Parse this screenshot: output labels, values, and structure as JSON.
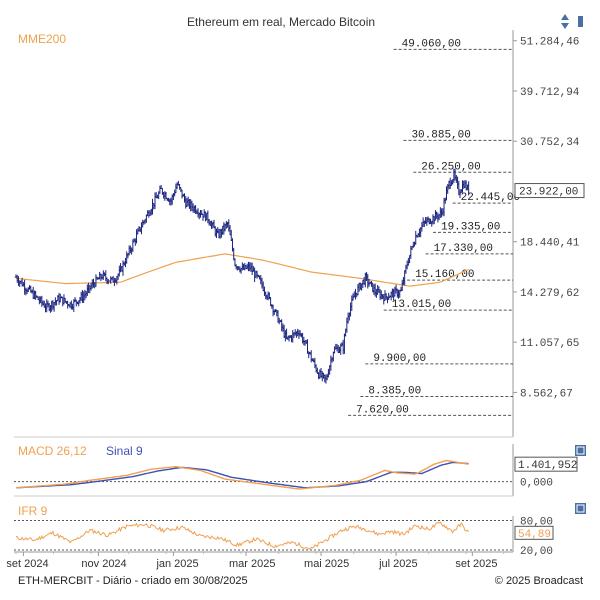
{
  "header": {
    "title": "Ethereum em real, Mercado Bitcoin",
    "sort_icon": "up-down-arrows-icon"
  },
  "footer": {
    "left": "ETH-MERCBIT - Diário - criado em 30/08/2025",
    "right": "© 2025 Broadcast"
  },
  "colors": {
    "price": "#1a237e",
    "mme": "#f0a050",
    "macd": "#f0a050",
    "signal": "#3f51b5",
    "ifr": "#f0a050",
    "grid": "#555555",
    "icon": "#4a6fa5"
  },
  "chart_data": [
    {
      "type": "ohlc",
      "title": "Ethereum em real, Mercado Bitcoin",
      "indicator_label": "MME200",
      "y_scale": "log",
      "ylim": [
        7000,
        52000
      ],
      "y_ticks": [
        "51.284,46",
        "39.712,94",
        "30.752,34",
        "23.922,00",
        "18.440,41",
        "14.279,62",
        "11.057,65",
        "8.562,67"
      ],
      "y_tick_values": [
        51284.46,
        39712.94,
        30752.34,
        23922.0,
        18440.41,
        14279.62,
        11057.65,
        8562.67
      ],
      "last_price_label": "23.922,00",
      "last_price_value": 23922.0,
      "x_labels": [
        "set 2024",
        "nov 2024",
        "jan 2025",
        "mar 2025",
        "mai 2025",
        "jul 2025",
        "set 2025"
      ],
      "x_label_days": [
        6,
        67,
        128,
        187,
        248,
        309,
        371
      ],
      "x_range_days": [
        0,
        400
      ],
      "levels": [
        {
          "label": "49.060,00",
          "value": 49060,
          "start_day": 307
        },
        {
          "label": "30.885,00",
          "value": 30885,
          "start_day": 315
        },
        {
          "label": "26.250,00",
          "value": 26250,
          "start_day": 323
        },
        {
          "label": "22.445,00",
          "value": 22445,
          "start_day": 355
        },
        {
          "label": "19.335,00",
          "value": 19335,
          "start_day": 339
        },
        {
          "label": "17.330,00",
          "value": 17330,
          "start_day": 333
        },
        {
          "label": "15.160,00",
          "value": 15160,
          "start_day": 318
        },
        {
          "label": "13.015,00",
          "value": 13015,
          "start_day": 299
        },
        {
          "label": "9.900,00",
          "value": 9900,
          "start_day": 284
        },
        {
          "label": "8.385,00",
          "value": 8385,
          "start_day": 280
        },
        {
          "label": "7.620,00",
          "value": 7620,
          "start_day": 270
        }
      ],
      "price_anchors": [
        {
          "day": 0,
          "value": 15400
        },
        {
          "day": 8,
          "value": 14600
        },
        {
          "day": 15,
          "value": 14000
        },
        {
          "day": 25,
          "value": 13200
        },
        {
          "day": 35,
          "value": 13800
        },
        {
          "day": 45,
          "value": 13400
        },
        {
          "day": 55,
          "value": 14000
        },
        {
          "day": 63,
          "value": 14900
        },
        {
          "day": 70,
          "value": 15500
        },
        {
          "day": 78,
          "value": 15100
        },
        {
          "day": 84,
          "value": 15700
        },
        {
          "day": 92,
          "value": 17500
        },
        {
          "day": 100,
          "value": 19500
        },
        {
          "day": 108,
          "value": 21500
        },
        {
          "day": 118,
          "value": 24000
        },
        {
          "day": 126,
          "value": 22700
        },
        {
          "day": 131,
          "value": 24700
        },
        {
          "day": 138,
          "value": 22500
        },
        {
          "day": 146,
          "value": 21800
        },
        {
          "day": 156,
          "value": 20800
        },
        {
          "day": 164,
          "value": 19000
        },
        {
          "day": 172,
          "value": 20200
        },
        {
          "day": 178,
          "value": 16500
        },
        {
          "day": 184,
          "value": 16000
        },
        {
          "day": 190,
          "value": 16200
        },
        {
          "day": 200,
          "value": 14800
        },
        {
          "day": 210,
          "value": 13000
        },
        {
          "day": 220,
          "value": 11200
        },
        {
          "day": 230,
          "value": 11700
        },
        {
          "day": 240,
          "value": 10200
        },
        {
          "day": 246,
          "value": 9400
        },
        {
          "day": 252,
          "value": 9100
        },
        {
          "day": 258,
          "value": 10600
        },
        {
          "day": 266,
          "value": 10800
        },
        {
          "day": 270,
          "value": 12800
        },
        {
          "day": 276,
          "value": 14200
        },
        {
          "day": 284,
          "value": 15300
        },
        {
          "day": 292,
          "value": 14300
        },
        {
          "day": 300,
          "value": 13900
        },
        {
          "day": 307,
          "value": 14200
        },
        {
          "day": 313,
          "value": 14300
        },
        {
          "day": 318,
          "value": 16500
        },
        {
          "day": 325,
          "value": 19000
        },
        {
          "day": 332,
          "value": 20300
        },
        {
          "day": 339,
          "value": 20800
        },
        {
          "day": 346,
          "value": 21300
        },
        {
          "day": 352,
          "value": 24800
        },
        {
          "day": 356,
          "value": 25800
        },
        {
          "day": 360,
          "value": 23800
        },
        {
          "day": 364,
          "value": 24800
        },
        {
          "day": 368,
          "value": 23922
        }
      ],
      "mme200_anchors": [
        {
          "day": 0,
          "value": 15300
        },
        {
          "day": 40,
          "value": 14900
        },
        {
          "day": 85,
          "value": 15000
        },
        {
          "day": 130,
          "value": 16600
        },
        {
          "day": 170,
          "value": 17330
        },
        {
          "day": 200,
          "value": 16800
        },
        {
          "day": 240,
          "value": 15800
        },
        {
          "day": 280,
          "value": 15300
        },
        {
          "day": 320,
          "value": 14700
        },
        {
          "day": 345,
          "value": 15000
        },
        {
          "day": 368,
          "value": 16000
        }
      ]
    },
    {
      "type": "line",
      "title": "MACD 26,12",
      "series_labels": [
        "MACD 26,12",
        "Sinal 9"
      ],
      "ylim": [
        -1000,
        1900
      ],
      "y_ticks": [
        "0,000"
      ],
      "y_tick_values": [
        0
      ],
      "last_value_label": "1.401,952",
      "last_value": 1401.952,
      "macd_anchors": [
        {
          "day": 0,
          "value": -500
        },
        {
          "day": 40,
          "value": -200
        },
        {
          "day": 60,
          "value": 100
        },
        {
          "day": 90,
          "value": 500
        },
        {
          "day": 110,
          "value": 1000
        },
        {
          "day": 130,
          "value": 1200
        },
        {
          "day": 150,
          "value": 900
        },
        {
          "day": 170,
          "value": 200
        },
        {
          "day": 200,
          "value": -200
        },
        {
          "day": 230,
          "value": -600
        },
        {
          "day": 260,
          "value": -300
        },
        {
          "day": 280,
          "value": 100
        },
        {
          "day": 300,
          "value": 900
        },
        {
          "day": 310,
          "value": 700
        },
        {
          "day": 325,
          "value": 600
        },
        {
          "day": 340,
          "value": 1400
        },
        {
          "day": 350,
          "value": 1700
        },
        {
          "day": 368,
          "value": 1400
        }
      ],
      "signal_anchors": [
        {
          "day": 0,
          "value": -500
        },
        {
          "day": 45,
          "value": -250
        },
        {
          "day": 65,
          "value": 0
        },
        {
          "day": 95,
          "value": 400
        },
        {
          "day": 115,
          "value": 850
        },
        {
          "day": 135,
          "value": 1150
        },
        {
          "day": 155,
          "value": 950
        },
        {
          "day": 175,
          "value": 350
        },
        {
          "day": 205,
          "value": -100
        },
        {
          "day": 235,
          "value": -500
        },
        {
          "day": 262,
          "value": -350
        },
        {
          "day": 285,
          "value": 0
        },
        {
          "day": 305,
          "value": 750
        },
        {
          "day": 315,
          "value": 750
        },
        {
          "day": 330,
          "value": 650
        },
        {
          "day": 345,
          "value": 1300
        },
        {
          "day": 355,
          "value": 1550
        },
        {
          "day": 368,
          "value": 1450
        }
      ]
    },
    {
      "type": "line",
      "title": "IFR 9",
      "ylim": [
        20,
        85
      ],
      "y_ticks": [
        "80,00",
        "20,00"
      ],
      "y_tick_values": [
        80,
        20
      ],
      "last_value_label": "54,89",
      "last_value": 54.89,
      "ifr_anchors": [
        {
          "day": 0,
          "value": 45
        },
        {
          "day": 15,
          "value": 40
        },
        {
          "day": 30,
          "value": 55
        },
        {
          "day": 45,
          "value": 35
        },
        {
          "day": 60,
          "value": 60
        },
        {
          "day": 75,
          "value": 50
        },
        {
          "day": 90,
          "value": 68
        },
        {
          "day": 105,
          "value": 72
        },
        {
          "day": 120,
          "value": 60
        },
        {
          "day": 135,
          "value": 66
        },
        {
          "day": 150,
          "value": 48
        },
        {
          "day": 165,
          "value": 45
        },
        {
          "day": 180,
          "value": 30
        },
        {
          "day": 195,
          "value": 42
        },
        {
          "day": 210,
          "value": 28
        },
        {
          "day": 225,
          "value": 35
        },
        {
          "day": 240,
          "value": 22
        },
        {
          "day": 255,
          "value": 45
        },
        {
          "day": 265,
          "value": 60
        },
        {
          "day": 275,
          "value": 68
        },
        {
          "day": 285,
          "value": 62
        },
        {
          "day": 295,
          "value": 52
        },
        {
          "day": 305,
          "value": 58
        },
        {
          "day": 315,
          "value": 52
        },
        {
          "day": 325,
          "value": 70
        },
        {
          "day": 335,
          "value": 62
        },
        {
          "day": 345,
          "value": 75
        },
        {
          "day": 355,
          "value": 58
        },
        {
          "day": 362,
          "value": 72
        },
        {
          "day": 368,
          "value": 54.89
        }
      ]
    }
  ]
}
